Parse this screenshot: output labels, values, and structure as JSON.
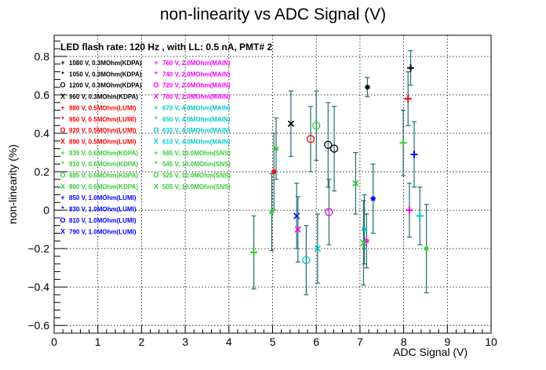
{
  "chart_data": {
    "type": "scatter",
    "title": "non-linearity vs ADC Signal (V)",
    "subtitle": "LED flash rate: 120 Hz , with LL: 0.5 nA, PMT# 2",
    "xlabel": "ADC Signal (V)",
    "ylabel": "non-linearity (%)",
    "xlim": [
      0,
      10
    ],
    "ylim": [
      -0.64,
      0.91
    ],
    "grid": true,
    "legend_position": "top-left",
    "xticks": [
      "0",
      "1",
      "2",
      "3",
      "4",
      "5",
      "6",
      "7",
      "8",
      "9",
      "10"
    ],
    "yticks": [
      "−0.6",
      "−0.4",
      "−0.2",
      "0",
      "0.2",
      "0.4",
      "0.6",
      "0.8"
    ],
    "ytick_values": [
      -0.6,
      -0.4,
      -0.2,
      0,
      0.2,
      0.4,
      0.6,
      0.8
    ],
    "errorbar_color": "#1f6e6e",
    "legend_left": [
      {
        "name": "1080 V, 0.3MOhm(KDPA)",
        "color": "#000000",
        "marker": "plus",
        "marker_label": "+"
      },
      {
        "name": "1050 V, 0.3MOhm(KDPA)",
        "color": "#000000",
        "marker": "star",
        "marker_label": "*"
      },
      {
        "name": "1200 V, 0.3MOhm(KDPA)",
        "color": "#000000",
        "marker": "circle",
        "marker_label": "O"
      },
      {
        "name": "960 V, 0.3MOhm(KDPA)",
        "color": "#000000",
        "marker": "cross",
        "marker_label": "X"
      },
      {
        "name": "980 V, 0.5MOhm(LUMI)",
        "color": "#ff0000",
        "marker": "plus",
        "marker_label": "+"
      },
      {
        "name": "950 V, 0.5MOhm(LUMI)",
        "color": "#ff0000",
        "marker": "star",
        "marker_label": "*"
      },
      {
        "name": "920 V, 0.5MOhm(LUMI)",
        "color": "#ff0000",
        "marker": "circle",
        "marker_label": "O"
      },
      {
        "name": "890 V, 0.5MOhm(LUMI)",
        "color": "#ff0000",
        "marker": "cross",
        "marker_label": "X"
      },
      {
        "name": "935 V, 0.6MOhm(KDPA)",
        "color": "#33cc33",
        "marker": "plus",
        "marker_label": "+"
      },
      {
        "name": "910 V, 0.6MOhm(KDPA)",
        "color": "#33cc33",
        "marker": "star",
        "marker_label": "*"
      },
      {
        "name": "885 V, 0.6MOhm(KDPA)",
        "color": "#33cc33",
        "marker": "circle",
        "marker_label": "O"
      },
      {
        "name": "860 V, 0.6MOhm(KDPA)",
        "color": "#33cc33",
        "marker": "cross",
        "marker_label": "X"
      },
      {
        "name": "850 V, 1.0MOhm(LUMI)",
        "color": "#0000ff",
        "marker": "plus",
        "marker_label": "+"
      },
      {
        "name": "830 V, 1.0MOhm(LUMI)",
        "color": "#0000ff",
        "marker": "star",
        "marker_label": "*"
      },
      {
        "name": "810 V, 1.0MOhm(LUMI)",
        "color": "#0000ff",
        "marker": "circle",
        "marker_label": "O"
      },
      {
        "name": "790 V, 1.0MOhm(LUMI)",
        "color": "#0000ff",
        "marker": "cross",
        "marker_label": "X"
      }
    ],
    "legend_right": [
      {
        "name": "760 V, 2.0MOhm(MAIN)",
        "color": "#ff00ff",
        "marker": "plus",
        "marker_label": "+"
      },
      {
        "name": "740 V, 2.0MOhm(MAIN)",
        "color": "#ff00ff",
        "marker": "star",
        "marker_label": "*"
      },
      {
        "name": "720 V, 2.0MOhm(MAIN)",
        "color": "#ff00ff",
        "marker": "circle",
        "marker_label": "O"
      },
      {
        "name": "700 V, 2.0MOhm(MAIN)",
        "color": "#ff00ff",
        "marker": "cross",
        "marker_label": "X"
      },
      {
        "name": "670 V, 4.0MOhm(MAIN)",
        "color": "#00cccc",
        "marker": "plus",
        "marker_label": "+"
      },
      {
        "name": "650 V, 4.0MOhm(MAIN)",
        "color": "#00cccc",
        "marker": "star",
        "marker_label": "*"
      },
      {
        "name": "630 V, 4.0MOhm(MAIN)",
        "color": "#00cccc",
        "marker": "circle",
        "marker_label": "O"
      },
      {
        "name": "610 V, 4.0MOhm(MAIN)",
        "color": "#00cccc",
        "marker": "cross",
        "marker_label": "X"
      },
      {
        "name": "565 V, 10.0MOhm(SNS)",
        "color": "#33cc33",
        "marker": "plus",
        "marker_label": "+"
      },
      {
        "name": "545 V, 10.0MOhm(SNS)",
        "color": "#33cc33",
        "marker": "star",
        "marker_label": "*"
      },
      {
        "name": "525 V, 10.0MOhm(SNS)",
        "color": "#33cc33",
        "marker": "circle",
        "marker_label": "O"
      },
      {
        "name": "505 V, 10.0MOhm(SNS)",
        "color": "#33cc33",
        "marker": "cross",
        "marker_label": "X"
      }
    ],
    "points": [
      {
        "x": 8.16,
        "y": 0.74,
        "err": 0.09,
        "color": "#000000",
        "marker": "plus"
      },
      {
        "x": 7.17,
        "y": 0.64,
        "err": 0.05,
        "color": "#000000",
        "marker": "star"
      },
      {
        "x": 6.27,
        "y": 0.34,
        "err": 0.22,
        "color": "#000000",
        "marker": "circle"
      },
      {
        "x": 6.41,
        "y": 0.32,
        "err": 0.22,
        "color": "#000000",
        "marker": "circle"
      },
      {
        "x": 5.42,
        "y": 0.45,
        "err": 0.17,
        "color": "#000000",
        "marker": "cross"
      },
      {
        "x": 8.1,
        "y": 0.58,
        "err": 0.14,
        "color": "#ff0000",
        "marker": "plus"
      },
      {
        "x": 5.03,
        "y": 0.2,
        "err": 0.2,
        "color": "#ff0000",
        "marker": "star"
      },
      {
        "x": 5.87,
        "y": 0.37,
        "err": 0.17,
        "color": "#ff0000",
        "marker": "circle"
      },
      {
        "x": 7.99,
        "y": 0.35,
        "err": 0.17,
        "color": "#33cc33",
        "marker": "plus"
      },
      {
        "x": 5.08,
        "y": 0.32,
        "err": 0.16,
        "color": "#33cc33",
        "marker": "star"
      },
      {
        "x": 6.0,
        "y": 0.44,
        "err": 0.18,
        "color": "#33cc33",
        "marker": "circle"
      },
      {
        "x": 6.9,
        "y": 0.14,
        "err": 0.16,
        "color": "#33cc33",
        "marker": "cross"
      },
      {
        "x": 8.24,
        "y": 0.29,
        "err": 0.17,
        "color": "#0000ff",
        "marker": "plus"
      },
      {
        "x": 7.3,
        "y": 0.06,
        "err": 0.18,
        "color": "#0000ff",
        "marker": "star"
      },
      {
        "x": 5.55,
        "y": -0.03,
        "err": 0.17,
        "color": "#0000ff",
        "marker": "cross"
      },
      {
        "x": 8.13,
        "y": 0.0,
        "err": 0.14,
        "color": "#ff00ff",
        "marker": "plus"
      },
      {
        "x": 7.15,
        "y": -0.16,
        "err": 0.14,
        "color": "#ff00ff",
        "marker": "star"
      },
      {
        "x": 6.29,
        "y": -0.01,
        "err": 0.17,
        "color": "#ff00ff",
        "marker": "circle"
      },
      {
        "x": 5.58,
        "y": -0.1,
        "err": 0.17,
        "color": "#ff00ff",
        "marker": "cross"
      },
      {
        "x": 8.37,
        "y": -0.03,
        "err": 0.15,
        "color": "#00cccc",
        "marker": "plus"
      },
      {
        "x": 7.1,
        "y": -0.1,
        "err": 0.18,
        "color": "#00cccc",
        "marker": "star"
      },
      {
        "x": 5.77,
        "y": -0.26,
        "err": 0.18,
        "color": "#00cccc",
        "marker": "circle"
      },
      {
        "x": 6.03,
        "y": -0.2,
        "err": 0.18,
        "color": "#00cccc",
        "marker": "cross"
      },
      {
        "x": 8.52,
        "y": -0.2,
        "err": 0.23,
        "color": "#33cc33",
        "marker": "star"
      },
      {
        "x": 4.57,
        "y": -0.22,
        "err": 0.19,
        "color": "#33cc33",
        "marker": "plus"
      },
      {
        "x": 4.98,
        "y": -0.01,
        "err": 0.2,
        "color": "#33cc33",
        "marker": "star"
      },
      {
        "x": 7.08,
        "y": -0.17,
        "err": 0.22,
        "color": "#33cc33",
        "marker": "cross"
      }
    ]
  }
}
